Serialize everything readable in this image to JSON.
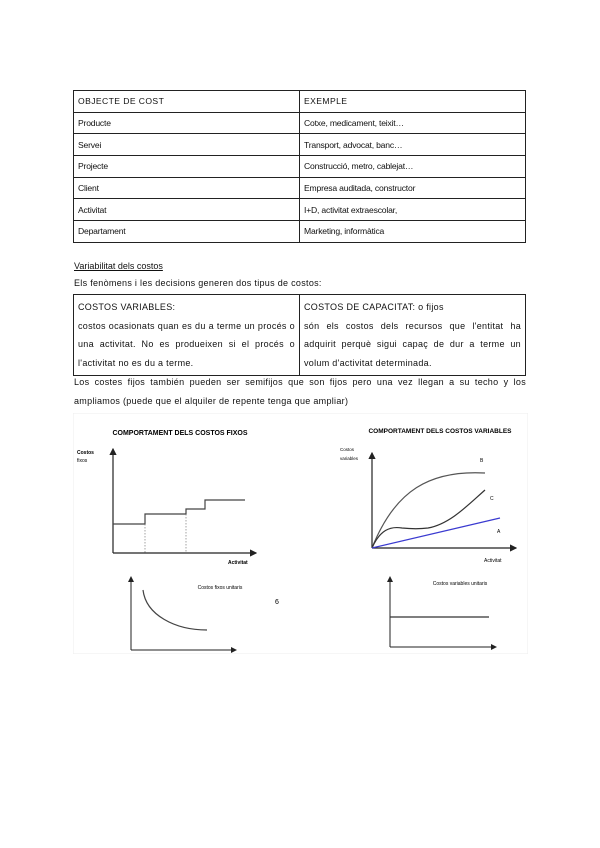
{
  "cost_table": {
    "headers": [
      "OBJECTE DE COST",
      "EXEMPLE"
    ],
    "rows": [
      [
        "Producte",
        "Cotxe, medicament, teixit…"
      ],
      [
        "Servei",
        "Transport, advocat, banc…"
      ],
      [
        "Projecte",
        "Construcció, metro, cablejat…"
      ],
      [
        "Client",
        "Empresa auditada, constructor"
      ],
      [
        "Activitat",
        "I+D, activitat extraescolar,"
      ],
      [
        "Departament",
        "Marketing, informàtica"
      ]
    ]
  },
  "section_title": "Variabilitat dels costos",
  "intro": "Els fenòmens i les decisions generen dos tipus de costos:",
  "types_table": {
    "variable": {
      "title": "COSTOS VARIABLES:",
      "text": "costos ocasionats quan es du a terme un procés o una activitat. No es produeixen si el procés o l'activitat no es du a terme."
    },
    "capacity": {
      "title": "COSTOS DE CAPACITAT: o fijos",
      "text": "són els costos dels recursos que l'entitat ha adquirit perquè sigui capaç de dur a terme un volum d'activitat determinada."
    }
  },
  "note": "Los costes fijos también pueden ser semifijos que son fijos pero una vez llegan a su techo y los ampliamos (puede que el alquiler de repente tenga que ampliar)",
  "figure": {
    "fixed_title": "COMPORTAMENT DELS COSTOS FIXOS",
    "fixed_ylabel_1": "Costos",
    "fixed_ylabel_2": "fixos",
    "fixed_xlabel": "Activitat",
    "variable_title": "COMPORTAMENT DELS COSTOS VARIABLES",
    "variable_ylabel_1": "Costos",
    "variable_ylabel_2": "variables",
    "variable_xlabel": "Activitat",
    "curve_b": "B",
    "curve_c": "C",
    "curve_a": "A",
    "unit_fixed_label": "Costos fixos unitaris",
    "unit_variable_label": "Costos variables unitaris",
    "page_number": "6",
    "line_a_color": "#3a3ad0"
  }
}
